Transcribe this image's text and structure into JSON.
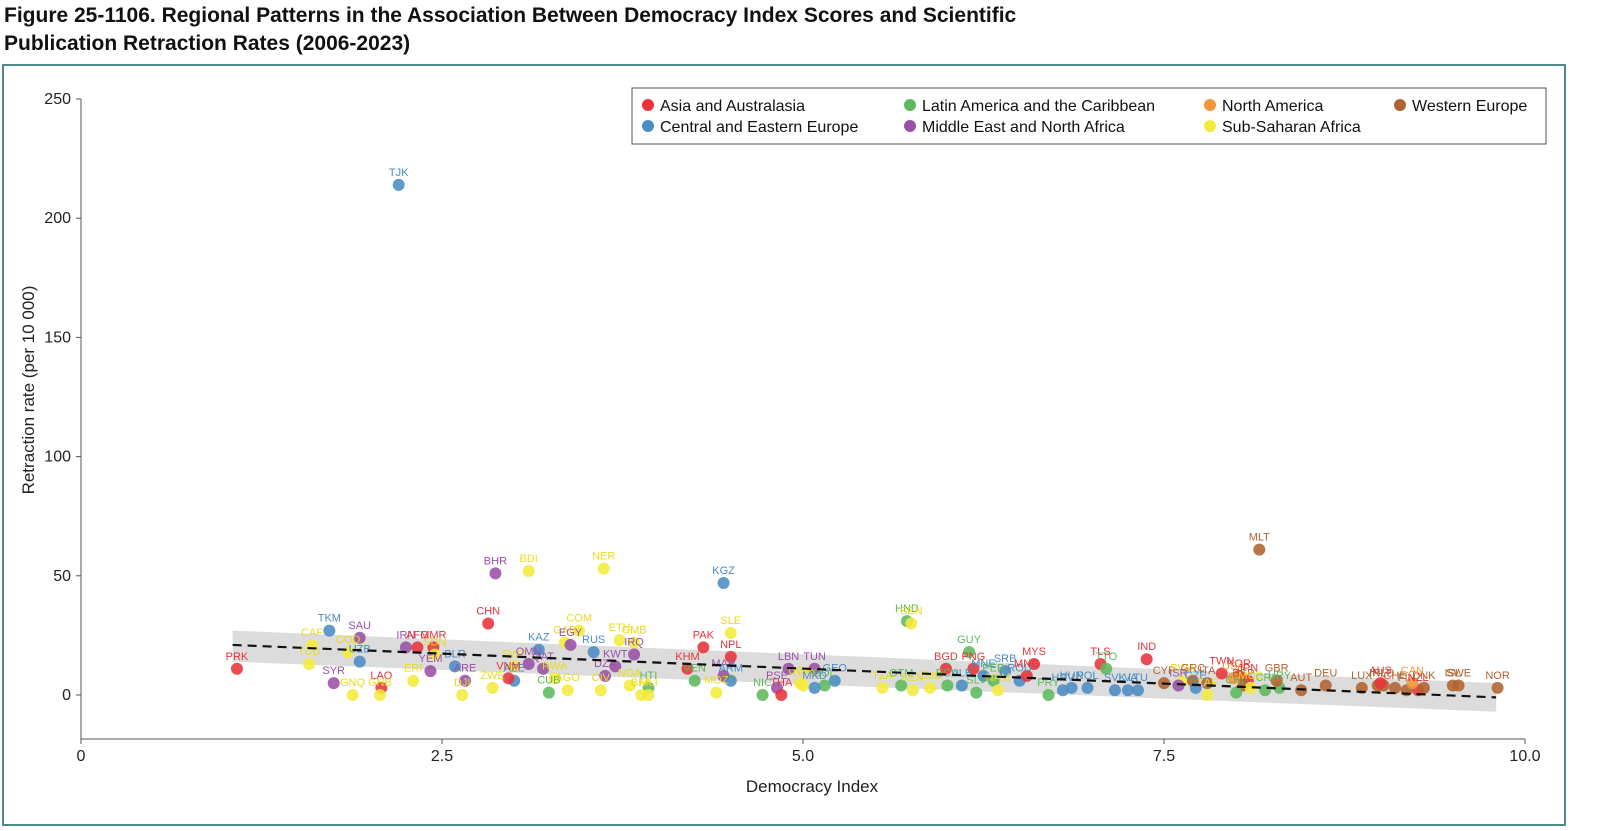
{
  "figure": {
    "title_line1": "Figure 25-1106. Regional Patterns in the Association Between Democracy Index Scores and Scientific",
    "title_line2": "Publication Retraction Rates (2006-2023)"
  },
  "chart_data": {
    "type": "scatter",
    "title": "Figure 25-1106. Regional Patterns in the Association Between Democracy Index Scores and Scientific Publication Retraction Rates (2006-2023)",
    "xlabel": "Democracy Index",
    "ylabel": "Retraction rate (per 10 000)",
    "xlim": [
      0,
      10
    ],
    "ylim": [
      -18,
      250
    ],
    "x_ticks": [
      "0",
      "2.5",
      "5.0",
      "7.5",
      "10.0"
    ],
    "x_tick_values": [
      0,
      2.5,
      5.0,
      7.5,
      10.0
    ],
    "y_ticks": [
      "0",
      "50",
      "100",
      "150",
      "200",
      "250"
    ],
    "y_tick_values": [
      0,
      50,
      100,
      150,
      200,
      250
    ],
    "grid": false,
    "legend_position": "top-right",
    "trendline": {
      "style": "dashed",
      "x": [
        1.05,
        9.8
      ],
      "y": [
        21,
        -1
      ],
      "ci_band": {
        "lower_start": 14,
        "upper_start": 27,
        "lower_end": -7,
        "upper_end": 5
      }
    },
    "regions": [
      {
        "name": "Asia and Australasia",
        "color": "#e8333a"
      },
      {
        "name": "Central and Eastern Europe",
        "color": "#4a8cc4"
      },
      {
        "name": "Latin America and the Caribbean",
        "color": "#5cb85c"
      },
      {
        "name": "Middle East and North Africa",
        "color": "#9b4fa8"
      },
      {
        "name": "North America",
        "color": "#f5953a"
      },
      {
        "name": "Sub-Saharan Africa",
        "color": "#f4ea3c"
      },
      {
        "name": "Western Europe",
        "color": "#b0632f"
      }
    ],
    "points": [
      {
        "label": "PRK",
        "region": 0,
        "x": 1.08,
        "y": 11
      },
      {
        "label": "TJK",
        "region": 1,
        "x": 2.2,
        "y": 214
      },
      {
        "label": "TKM",
        "region": 1,
        "x": 1.72,
        "y": 27
      },
      {
        "label": "SAU",
        "region": 3,
        "x": 1.93,
        "y": 24
      },
      {
        "label": "CAF",
        "region": 5,
        "x": 1.6,
        "y": 21
      },
      {
        "label": "TCD",
        "region": 5,
        "x": 1.58,
        "y": 13
      },
      {
        "label": "COD",
        "region": 5,
        "x": 1.85,
        "y": 18
      },
      {
        "label": "UZB",
        "region": 1,
        "x": 1.93,
        "y": 14
      },
      {
        "label": "SYR",
        "region": 3,
        "x": 1.75,
        "y": 5
      },
      {
        "label": "GNQ",
        "region": 5,
        "x": 1.88,
        "y": 0
      },
      {
        "label": "LAO",
        "region": 0,
        "x": 2.08,
        "y": 3
      },
      {
        "label": "GNB",
        "region": 5,
        "x": 2.07,
        "y": 0
      },
      {
        "label": "IRN",
        "region": 3,
        "x": 2.25,
        "y": 20
      },
      {
        "label": "AFG",
        "region": 0,
        "x": 2.33,
        "y": 20
      },
      {
        "label": "MMR",
        "region": 0,
        "x": 2.44,
        "y": 20
      },
      {
        "label": "SDN",
        "region": 5,
        "x": 2.45,
        "y": 17
      },
      {
        "label": "ERI",
        "region": 5,
        "x": 2.3,
        "y": 6
      },
      {
        "label": "YEM",
        "region": 3,
        "x": 2.42,
        "y": 10
      },
      {
        "label": "BLR",
        "region": 1,
        "x": 2.59,
        "y": 12
      },
      {
        "label": "ARE",
        "region": 3,
        "x": 2.66,
        "y": 6
      },
      {
        "label": "DJI",
        "region": 5,
        "x": 2.64,
        "y": 0
      },
      {
        "label": "BDI",
        "region": 5,
        "x": 3.1,
        "y": 52
      },
      {
        "label": "BHR",
        "region": 3,
        "x": 2.87,
        "y": 51
      },
      {
        "label": "CHN",
        "region": 0,
        "x": 2.82,
        "y": 30
      },
      {
        "label": "ZWE",
        "region": 5,
        "x": 2.85,
        "y": 3
      },
      {
        "label": "AZE",
        "region": 1,
        "x": 3.0,
        "y": 6
      },
      {
        "label": "VNM",
        "region": 0,
        "x": 2.96,
        "y": 7
      },
      {
        "label": "SWZ",
        "region": 5,
        "x": 3.0,
        "y": 12
      },
      {
        "label": "OMN",
        "region": 3,
        "x": 3.1,
        "y": 13
      },
      {
        "label": "KAZ",
        "region": 1,
        "x": 3.17,
        "y": 19
      },
      {
        "label": "QAT",
        "region": 3,
        "x": 3.2,
        "y": 11
      },
      {
        "label": "CUB",
        "region": 2,
        "x": 3.24,
        "y": 1
      },
      {
        "label": "RWA",
        "region": 5,
        "x": 3.28,
        "y": 7
      },
      {
        "label": "GAB",
        "region": 5,
        "x": 3.35,
        "y": 22
      },
      {
        "label": "EGY",
        "region": 3,
        "x": 3.39,
        "y": 21
      },
      {
        "label": "COM",
        "region": 5,
        "x": 3.45,
        "y": 27
      },
      {
        "label": "AGO",
        "region": 5,
        "x": 3.37,
        "y": 2
      },
      {
        "label": "RUS",
        "region": 1,
        "x": 3.55,
        "y": 18
      },
      {
        "label": "NER",
        "region": 5,
        "x": 3.62,
        "y": 53
      },
      {
        "label": "DZA",
        "region": 3,
        "x": 3.63,
        "y": 8
      },
      {
        "label": "CIV",
        "region": 5,
        "x": 3.6,
        "y": 2
      },
      {
        "label": "KWT",
        "region": 3,
        "x": 3.7,
        "y": 12
      },
      {
        "label": "ETH",
        "region": 5,
        "x": 3.73,
        "y": 23
      },
      {
        "label": "GMB",
        "region": 5,
        "x": 3.83,
        "y": 22
      },
      {
        "label": "IRQ",
        "region": 3,
        "x": 3.83,
        "y": 17
      },
      {
        "label": "NGA",
        "region": 5,
        "x": 3.8,
        "y": 4
      },
      {
        "label": "HTI",
        "region": 2,
        "x": 3.93,
        "y": 3
      },
      {
        "label": "BFA",
        "region": 5,
        "x": 3.88,
        "y": 0
      },
      {
        "label": "MLI",
        "region": 5,
        "x": 3.93,
        "y": 0
      },
      {
        "label": "KHM",
        "region": 0,
        "x": 4.2,
        "y": 11
      },
      {
        "label": "VEN",
        "region": 2,
        "x": 4.25,
        "y": 6
      },
      {
        "label": "PAK",
        "region": 0,
        "x": 4.31,
        "y": 20
      },
      {
        "label": "KGZ",
        "region": 1,
        "x": 4.45,
        "y": 47
      },
      {
        "label": "SLE",
        "region": 5,
        "x": 4.5,
        "y": 26
      },
      {
        "label": "NPL",
        "region": 0,
        "x": 4.5,
        "y": 16
      },
      {
        "label": "MAR",
        "region": 3,
        "x": 4.45,
        "y": 8
      },
      {
        "label": "ARM",
        "region": 1,
        "x": 4.5,
        "y": 6
      },
      {
        "label": "MOZ",
        "region": 5,
        "x": 4.4,
        "y": 1
      },
      {
        "label": "NIC",
        "region": 2,
        "x": 4.72,
        "y": 0
      },
      {
        "label": "PSE",
        "region": 3,
        "x": 4.82,
        "y": 3
      },
      {
        "label": "THA",
        "region": 0,
        "x": 4.85,
        "y": 0
      },
      {
        "label": "LBN",
        "region": 3,
        "x": 4.9,
        "y": 11
      },
      {
        "label": "TUN",
        "region": 3,
        "x": 5.08,
        "y": 11
      },
      {
        "label": "UGA",
        "region": 5,
        "x": 4.98,
        "y": 5
      },
      {
        "label": "TGO",
        "region": 5,
        "x": 5.0,
        "y": 4
      },
      {
        "label": "GEO",
        "region": 1,
        "x": 5.22,
        "y": 6
      },
      {
        "label": "BOL",
        "region": 2,
        "x": 5.15,
        "y": 4
      },
      {
        "label": "MKD",
        "region": 1,
        "x": 5.08,
        "y": 3
      },
      {
        "label": "TZA",
        "region": 5,
        "x": 5.55,
        "y": 3
      },
      {
        "label": "GTM",
        "region": 2,
        "x": 5.68,
        "y": 4
      },
      {
        "label": "KEN",
        "region": 5,
        "x": 5.76,
        "y": 2
      },
      {
        "label": "ZMB",
        "region": 5,
        "x": 5.88,
        "y": 3
      },
      {
        "label": "HND",
        "region": 2,
        "x": 5.72,
        "y": 31
      },
      {
        "label": "SEN",
        "region": 5,
        "x": 5.75,
        "y": 30
      },
      {
        "label": "BGD",
        "region": 0,
        "x": 5.99,
        "y": 11
      },
      {
        "label": "ECU",
        "region": 2,
        "x": 6.0,
        "y": 4
      },
      {
        "label": "GUY",
        "region": 2,
        "x": 6.15,
        "y": 18
      },
      {
        "label": "PNG",
        "region": 0,
        "x": 6.18,
        "y": 11
      },
      {
        "label": "ALB",
        "region": 1,
        "x": 6.1,
        "y": 4
      },
      {
        "label": "MNE",
        "region": 1,
        "x": 6.25,
        "y": 8
      },
      {
        "label": "SLV",
        "region": 2,
        "x": 6.2,
        "y": 1
      },
      {
        "label": "PER",
        "region": 2,
        "x": 6.32,
        "y": 6
      },
      {
        "label": "SRB",
        "region": 1,
        "x": 6.4,
        "y": 10
      },
      {
        "label": "NAM",
        "region": 5,
        "x": 6.35,
        "y": 2
      },
      {
        "label": "MYS",
        "region": 0,
        "x": 6.6,
        "y": 13
      },
      {
        "label": "ROU",
        "region": 1,
        "x": 6.5,
        "y": 6
      },
      {
        "label": "MNG",
        "region": 0,
        "x": 6.55,
        "y": 8
      },
      {
        "label": "PRY",
        "region": 2,
        "x": 6.7,
        "y": 0
      },
      {
        "label": "HRV",
        "region": 1,
        "x": 6.8,
        "y": 2
      },
      {
        "label": "HUN",
        "region": 1,
        "x": 6.86,
        "y": 3
      },
      {
        "label": "POL",
        "region": 1,
        "x": 6.97,
        "y": 3
      },
      {
        "label": "TLS",
        "region": 0,
        "x": 7.06,
        "y": 13
      },
      {
        "label": "TTO",
        "region": 2,
        "x": 7.1,
        "y": 11
      },
      {
        "label": "SVK",
        "region": 1,
        "x": 7.16,
        "y": 2
      },
      {
        "label": "LVA",
        "region": 1,
        "x": 7.25,
        "y": 2
      },
      {
        "label": "IND",
        "region": 0,
        "x": 7.38,
        "y": 15
      },
      {
        "label": "LTU",
        "region": 1,
        "x": 7.32,
        "y": 2
      },
      {
        "label": "CYP",
        "region": 6,
        "x": 7.5,
        "y": 5
      },
      {
        "label": "BWA",
        "region": 5,
        "x": 7.63,
        "y": 6
      },
      {
        "label": "ISR",
        "region": 3,
        "x": 7.6,
        "y": 4
      },
      {
        "label": "GRC",
        "region": 6,
        "x": 7.7,
        "y": 6
      },
      {
        "label": "ITA",
        "region": 6,
        "x": 7.8,
        "y": 5
      },
      {
        "label": "CZE",
        "region": 1,
        "x": 7.72,
        "y": 3
      },
      {
        "label": "ZAF",
        "region": 5,
        "x": 7.8,
        "y": 0
      },
      {
        "label": "TWN",
        "region": 0,
        "x": 7.9,
        "y": 9
      },
      {
        "label": "KOR",
        "region": 0,
        "x": 8.02,
        "y": 8
      },
      {
        "label": "USA",
        "region": 4,
        "x": 7.98,
        "y": 7
      },
      {
        "label": "JPN",
        "region": 0,
        "x": 8.08,
        "y": 6
      },
      {
        "label": "ESP",
        "region": 6,
        "x": 8.05,
        "y": 4
      },
      {
        "label": "CRI",
        "region": 2,
        "x": 8.2,
        "y": 2
      },
      {
        "label": "CHL",
        "region": 2,
        "x": 8.0,
        "y": 1
      },
      {
        "label": "URY",
        "region": 2,
        "x": 8.3,
        "y": 3
      },
      {
        "label": "MUS",
        "region": 5,
        "x": 8.1,
        "y": 3
      },
      {
        "label": "GBR",
        "region": 6,
        "x": 8.28,
        "y": 6
      },
      {
        "label": "MLT",
        "region": 6,
        "x": 8.16,
        "y": 61
      },
      {
        "label": "AUT",
        "region": 6,
        "x": 8.45,
        "y": 2
      },
      {
        "label": "DEU",
        "region": 6,
        "x": 8.62,
        "y": 4
      },
      {
        "label": "LUX",
        "region": 6,
        "x": 8.87,
        "y": 3
      },
      {
        "label": "IRL",
        "region": 6,
        "x": 8.98,
        "y": 4
      },
      {
        "label": "NLD",
        "region": 6,
        "x": 9.02,
        "y": 4
      },
      {
        "label": "CHE",
        "region": 6,
        "x": 9.1,
        "y": 3
      },
      {
        "label": "FIN",
        "region": 6,
        "x": 9.18,
        "y": 2
      },
      {
        "label": "AUS",
        "region": 0,
        "x": 9.0,
        "y": 5
      },
      {
        "label": "NZL",
        "region": 0,
        "x": 9.26,
        "y": 2
      },
      {
        "label": "DNK",
        "region": 6,
        "x": 9.3,
        "y": 3
      },
      {
        "label": "CAN",
        "region": 4,
        "x": 9.22,
        "y": 5
      },
      {
        "label": "ISL",
        "region": 6,
        "x": 9.5,
        "y": 4
      },
      {
        "label": "SWE",
        "region": 6,
        "x": 9.54,
        "y": 4
      },
      {
        "label": "NOR",
        "region": 6,
        "x": 9.81,
        "y": 3
      }
    ]
  }
}
